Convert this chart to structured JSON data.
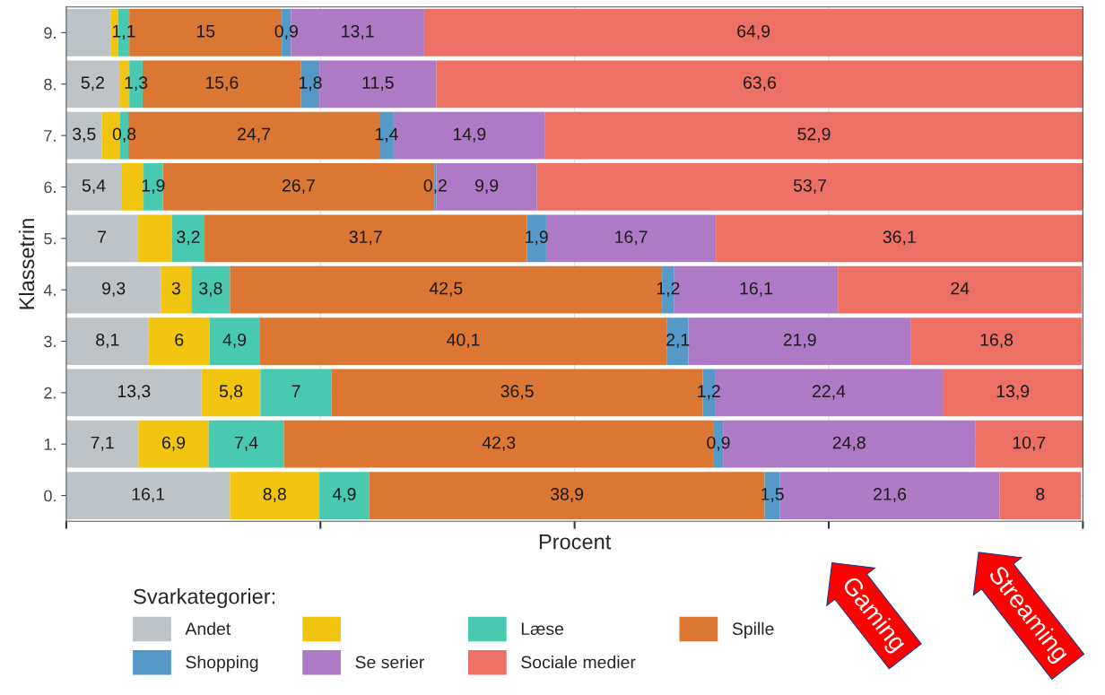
{
  "chart_data": {
    "type": "bar",
    "orientation": "horizontal",
    "stacked": true,
    "ylabel": "Klassetrin",
    "xlabel": "Procent",
    "legend_title": "Svarkategorier:",
    "legend": "bottom",
    "grid": true,
    "tick_labels": "y",
    "categories": [
      "9.",
      "8.",
      "7.",
      "6.",
      "5.",
      "4.",
      "3.",
      "2.",
      "1.",
      "0."
    ],
    "xlim": [
      0,
      100
    ],
    "xticks": [
      {
        "value": 0,
        "label": null
      },
      {
        "value": 25,
        "label": null
      },
      {
        "value": 50,
        "label": null
      },
      {
        "value": 75,
        "label": null
      },
      {
        "value": 100,
        "label": null
      }
    ],
    "series": [
      {
        "name": "Andet",
        "color": "#bdc3c7",
        "values": [
          4.4,
          5.2,
          3.5,
          5.4,
          7,
          9.3,
          8.1,
          13.3,
          7.1,
          16.1
        ],
        "value_labels": [
          null,
          "5,2",
          "3,5",
          "5,4",
          "7",
          "9,3",
          "8,1",
          "13,3",
          "7,1",
          "16,1"
        ]
      },
      {
        "color": "#f1c40f",
        "values": [
          0.7,
          1.0,
          1.8,
          2.2,
          3.4,
          3,
          6,
          5.8,
          6.9,
          8.8
        ],
        "value_labels": [
          null,
          null,
          null,
          null,
          null,
          "3",
          "6",
          "5,8",
          "6,9",
          "8,8"
        ]
      },
      {
        "name": "Læse",
        "color": "#48c9b0",
        "values": [
          1.1,
          1.3,
          0.8,
          1.9,
          3.2,
          3.8,
          4.9,
          7,
          7.4,
          4.9
        ],
        "value_labels": [
          "1,1",
          "1,3",
          "0,8",
          "1,9",
          "3,2",
          "3,8",
          "4,9",
          "7",
          "7,4",
          "4,9"
        ]
      },
      {
        "name": "Spille",
        "color": "#dc7633",
        "values": [
          15,
          15.6,
          24.7,
          26.7,
          31.7,
          42.5,
          40.1,
          36.5,
          42.3,
          38.9
        ],
        "value_labels": [
          "15",
          "15,6",
          "24,7",
          "26,7",
          "31,7",
          "42,5",
          "40,1",
          "36,5",
          "42,3",
          "38,9"
        ]
      },
      {
        "name": "Shopping",
        "color": "#5499c7",
        "values": [
          0.9,
          1.8,
          1.4,
          0.2,
          1.9,
          1.2,
          2.1,
          1.2,
          0.9,
          1.5
        ],
        "value_labels": [
          "0,9",
          "1,8",
          "1,4",
          "0,2",
          "1,9",
          "1,2",
          "2,1",
          "1,2",
          "0,9",
          "1,5"
        ]
      },
      {
        "name": "Se serier",
        "color": "#af7ac5",
        "values": [
          13.1,
          11.5,
          14.9,
          9.9,
          16.7,
          16.1,
          21.9,
          22.4,
          24.8,
          21.6
        ],
        "value_labels": [
          "13,1",
          "11,5",
          "14,9",
          "9,9",
          "16,7",
          "16,1",
          "21,9",
          "22,4",
          "24,8",
          "21,6"
        ]
      },
      {
        "name": "Sociale medier",
        "color": "#ec7063",
        "values": [
          64.9,
          63.6,
          52.9,
          53.7,
          36.1,
          24,
          16.8,
          13.9,
          10.7,
          8
        ],
        "value_labels": [
          "64,9",
          "63,6",
          "52,9",
          "53,7",
          "36,1",
          "24",
          "16,8",
          "13,9",
          "10,7",
          "8"
        ]
      }
    ],
    "annotations": [
      "Gaming",
      "Streaming"
    ]
  }
}
